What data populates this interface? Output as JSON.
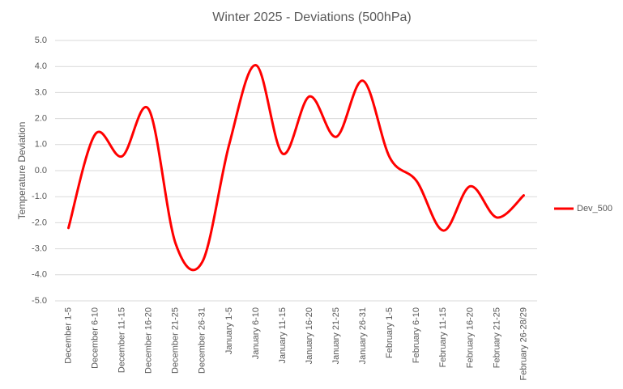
{
  "chart_data": {
    "type": "line",
    "title": "Winter 2025 - Deviations (500hPa)",
    "y_label": "Temperature Deviation",
    "categories": [
      "December 1-5",
      "December 6-10",
      "December 11-15",
      "December 16-20",
      "December 21-25",
      "December 26-31",
      "January 1-5",
      "January 6-10",
      "January 11-15",
      "January 16-20",
      "January 21-25",
      "January 26-31",
      "February 1-5",
      "February 6-10",
      "February 11-15",
      "February 16-20",
      "February 21-25",
      "February 26-28/29"
    ],
    "series": [
      {
        "name": "Dev_500",
        "color": "#ff0000",
        "values": [
          -2.2,
          1.4,
          0.55,
          2.35,
          -2.8,
          -3.5,
          1.0,
          4.05,
          0.65,
          2.85,
          1.3,
          3.45,
          0.5,
          -0.4,
          -2.3,
          -0.6,
          -1.8,
          -0.95
        ]
      }
    ],
    "ylim": [
      -5,
      5
    ],
    "yticks": [
      {
        "value": -5,
        "label": "-5.0"
      },
      {
        "value": -4,
        "label": "-4.0"
      },
      {
        "value": -3,
        "label": "-3.0"
      },
      {
        "value": -2,
        "label": "-2.0"
      },
      {
        "value": -1,
        "label": "-1.0"
      },
      {
        "value": 0,
        "label": "0.0"
      },
      {
        "value": 1,
        "label": "1.0"
      },
      {
        "value": 2,
        "label": "2.0"
      },
      {
        "value": 3,
        "label": "3.0"
      },
      {
        "value": 4,
        "label": "4.0"
      },
      {
        "value": 5,
        "label": "5.0"
      }
    ],
    "grid": true,
    "smooth": true,
    "legend": "right"
  }
}
